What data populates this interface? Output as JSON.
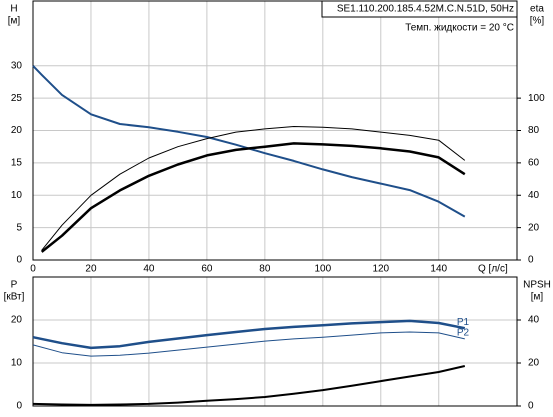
{
  "chart_data": [
    {
      "type": "line",
      "title": "SE1.110.200.185.4.52M.C.N.51D, 50Hz",
      "subtitle": "Темп. жидкости = 20 °C",
      "ylabel": "H",
      "yunit": "[м]",
      "y2label": "eta",
      "y2unit": "[%]",
      "xlabel": "Q [л/с]",
      "x": [
        0,
        3,
        10,
        20,
        30,
        40,
        50,
        60,
        70,
        80,
        90,
        100,
        110,
        120,
        130,
        140,
        149
      ],
      "xlim": [
        0,
        167
      ],
      "xticks": [
        0,
        20,
        40,
        60,
        80,
        100,
        120,
        140
      ],
      "ylim": [
        0,
        40
      ],
      "yticks": [
        0,
        5,
        10,
        15,
        20,
        25,
        30
      ],
      "y2lim": [
        0,
        160
      ],
      "y2ticks": [
        0,
        20,
        40,
        60,
        80,
        100
      ],
      "grid": true,
      "series": [
        {
          "color": "#1f4f8a",
          "line_width": 2,
          "values": [
            30,
            28.6,
            25.5,
            22.5,
            21,
            20.5,
            19.8,
            19,
            17.8,
            16.5,
            15.3,
            14,
            12.8,
            11.8,
            10.8,
            9,
            6.7
          ]
        },
        {
          "color": "#000000",
          "line_width": 1,
          "axis": "y2",
          "values": [
            null,
            6,
            21.5,
            40,
            53,
            63,
            70,
            75,
            79,
            81,
            82.5,
            82,
            81,
            79,
            77,
            74,
            61.5
          ]
        },
        {
          "color": "#000000",
          "line_width": 2.5,
          "axis": "y2",
          "values": [
            null,
            5,
            15,
            32,
            43,
            52,
            59,
            64.6,
            68,
            70,
            72,
            71.4,
            70.5,
            69,
            67,
            63.4,
            53
          ]
        }
      ]
    },
    {
      "type": "line",
      "ylabel": "P",
      "yunit": "[кВт]",
      "y2label": "NPSH",
      "y2unit": "[м]",
      "x": [
        0,
        10,
        20,
        30,
        40,
        50,
        60,
        70,
        80,
        90,
        100,
        110,
        120,
        130,
        140,
        149
      ],
      "xlim": [
        0,
        167
      ],
      "xticks": [
        0,
        20,
        40,
        60,
        80,
        100,
        120,
        140
      ],
      "ylim": [
        0,
        30
      ],
      "yticks": [
        0,
        10,
        20
      ],
      "y2lim": [
        0,
        60
      ],
      "y2ticks": [
        0,
        20,
        40
      ],
      "grid": true,
      "series": [
        {
          "name": "P1",
          "color": "#1f4f8a",
          "line_width": 2.5,
          "values": [
            16,
            14.6,
            13.5,
            13.9,
            14.9,
            15.7,
            16.5,
            17.2,
            17.9,
            18.4,
            18.8,
            19.2,
            19.5,
            19.8,
            19.3,
            18.1
          ]
        },
        {
          "name": "P2",
          "color": "#1f4f8a",
          "line_width": 1,
          "values": [
            14.2,
            12.4,
            11.6,
            11.8,
            12.3,
            13,
            13.7,
            14.4,
            15.1,
            15.6,
            16,
            16.5,
            17,
            17.2,
            17,
            15.6
          ]
        },
        {
          "color": "#000000",
          "line_width": 2,
          "axis": "y2",
          "values": [
            1,
            0.7,
            0.5,
            0.7,
            1,
            1.6,
            2.4,
            3.2,
            4.2,
            5.7,
            7.4,
            9.4,
            11.6,
            13.7,
            15.8,
            18.6
          ]
        }
      ]
    }
  ]
}
